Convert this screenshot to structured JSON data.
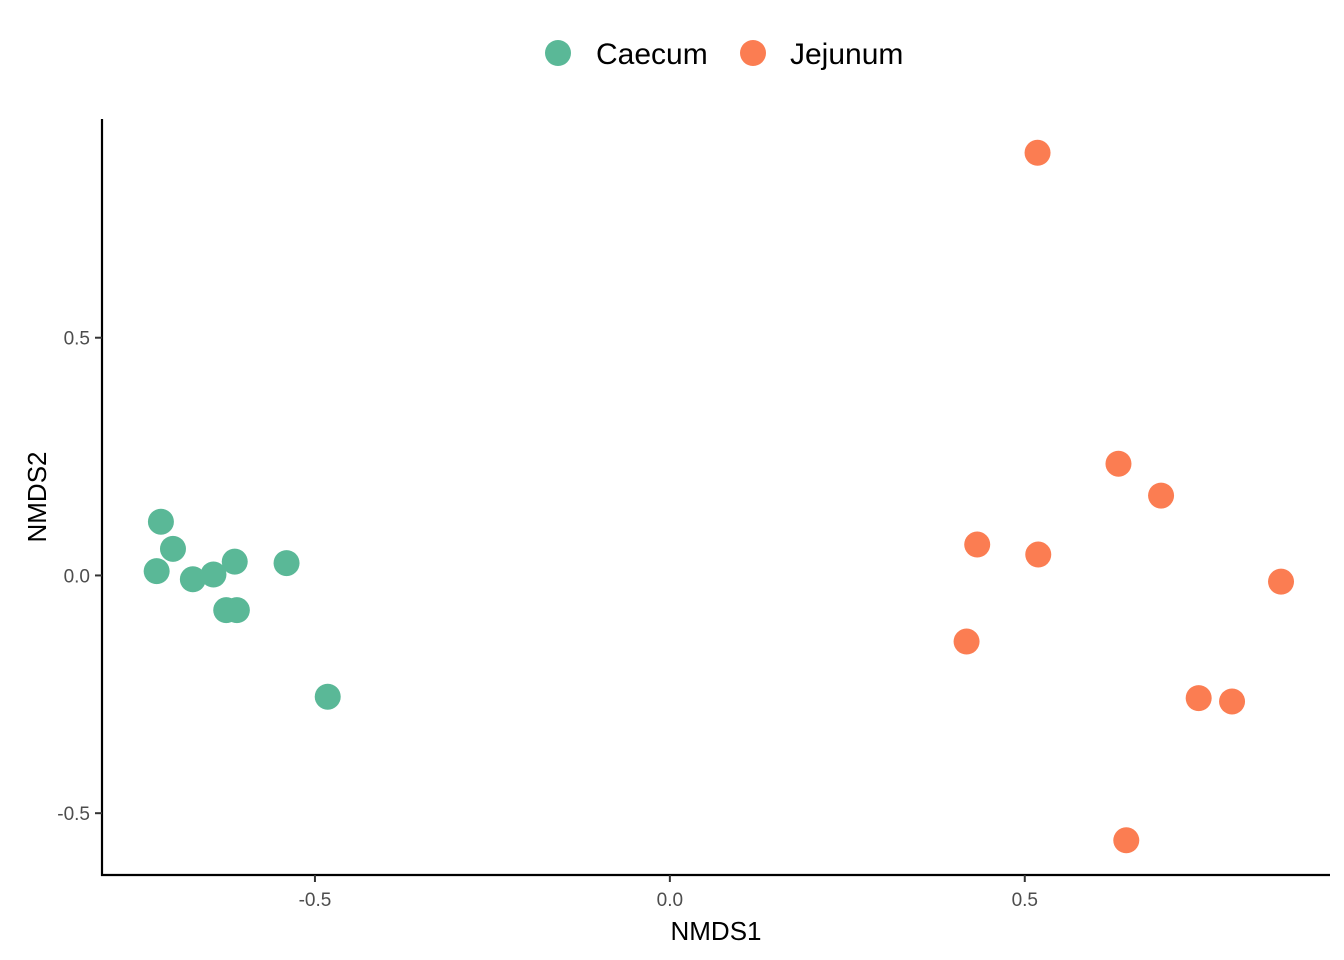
{
  "chart_data": {
    "type": "scatter",
    "title": "",
    "xlabel": "NMDS1",
    "ylabel": "NMDS2",
    "xlim": [
      -0.8,
      0.93
    ],
    "ylim": [
      -0.63,
      0.96
    ],
    "x_ticks": [
      -0.5,
      0.0,
      0.5
    ],
    "x_tick_labels": [
      "-0.5",
      "0.0",
      "0.5"
    ],
    "y_ticks": [
      -0.5,
      0.0,
      0.5
    ],
    "y_tick_labels": [
      "-0.5",
      "0.0",
      "0.5"
    ],
    "grid": false,
    "legend_position": "top",
    "series": [
      {
        "name": "Caecum",
        "color": "#5ab897",
        "points": [
          {
            "x": -0.717,
            "y": 0.113
          },
          {
            "x": -0.7,
            "y": 0.056
          },
          {
            "x": -0.723,
            "y": 0.009
          },
          {
            "x": -0.672,
            "y": -0.008
          },
          {
            "x": -0.643,
            "y": 0.002
          },
          {
            "x": -0.613,
            "y": 0.029
          },
          {
            "x": -0.54,
            "y": 0.026
          },
          {
            "x": -0.625,
            "y": -0.073
          },
          {
            "x": -0.61,
            "y": -0.073
          },
          {
            "x": -0.482,
            "y": -0.255
          }
        ]
      },
      {
        "name": "Jejunum",
        "color": "#fb7d52",
        "points": [
          {
            "x": 0.518,
            "y": 0.889
          },
          {
            "x": 0.632,
            "y": 0.235
          },
          {
            "x": 0.692,
            "y": 0.168
          },
          {
            "x": 0.433,
            "y": 0.065
          },
          {
            "x": 0.519,
            "y": 0.044
          },
          {
            "x": 0.861,
            "y": -0.013
          },
          {
            "x": 0.418,
            "y": -0.139
          },
          {
            "x": 0.745,
            "y": -0.258
          },
          {
            "x": 0.792,
            "y": -0.265
          },
          {
            "x": 0.643,
            "y": -0.557
          }
        ]
      }
    ]
  }
}
